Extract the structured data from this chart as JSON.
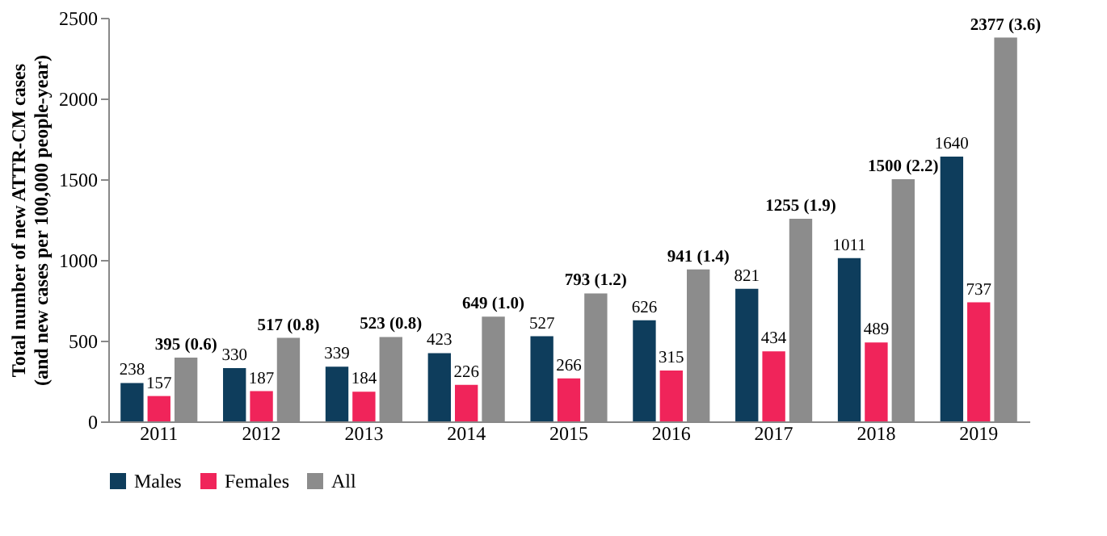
{
  "chart_data": {
    "type": "bar",
    "ylabel": "Total number of new ATTR-CM cases\n(and new cases per 100,000 people-year)",
    "categories": [
      "2011",
      "2012",
      "2013",
      "2014",
      "2015",
      "2016",
      "2017",
      "2018",
      "2019"
    ],
    "series": [
      {
        "name": "Males",
        "color": "#0e3d5c",
        "values": [
          238,
          330,
          339,
          423,
          527,
          626,
          821,
          1011,
          1640
        ],
        "value_labels": [
          "238",
          "330",
          "339",
          "423",
          "527",
          "626",
          "821",
          "1011",
          "1640"
        ]
      },
      {
        "name": "Females",
        "color": "#f0245a",
        "values": [
          157,
          187,
          184,
          226,
          266,
          315,
          434,
          489,
          737
        ],
        "value_labels": [
          "157",
          "187",
          "184",
          "226",
          "266",
          "315",
          "434",
          "489",
          "737"
        ]
      },
      {
        "name": "All",
        "color": "#8c8c8c",
        "values": [
          395,
          517,
          523,
          649,
          793,
          941,
          1255,
          1500,
          2377
        ],
        "value_labels": [
          "395 (0.6)",
          "517 (0.8)",
          "523 (0.8)",
          "649 (1.0)",
          "793 (1.2)",
          "941 (1.4)",
          "1255 (1.9)",
          "1500 (2.2)",
          "2377 (3.6)"
        ]
      }
    ],
    "ylim": [
      0,
      2500
    ],
    "yticks": [
      0,
      500,
      1000,
      1500,
      2000,
      2500
    ],
    "grid": false,
    "legend": "bottom"
  }
}
